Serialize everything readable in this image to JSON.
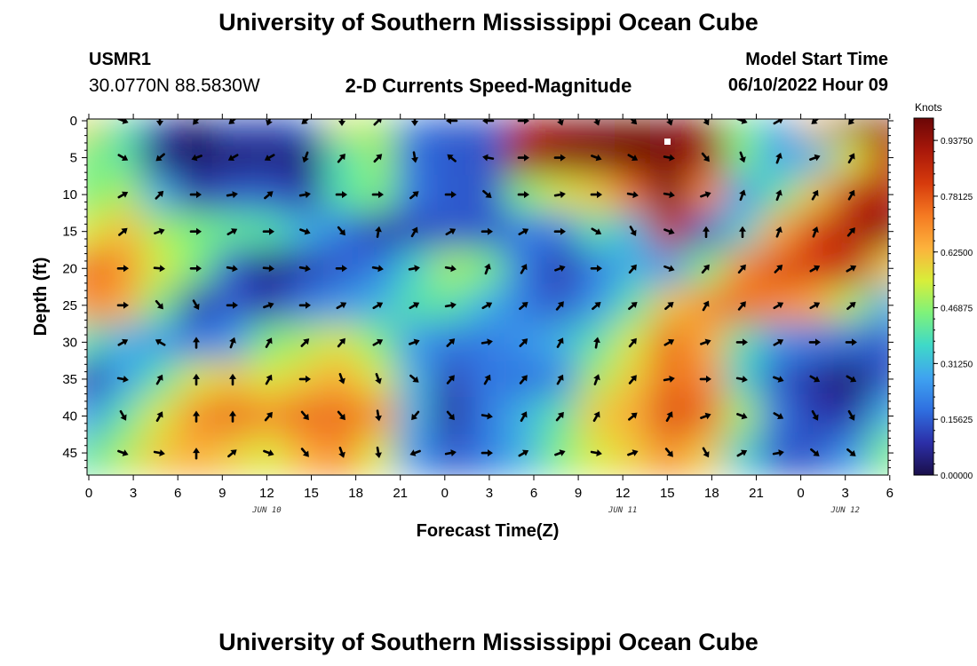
{
  "header": {
    "title": "University of Southern Mississippi Ocean Cube",
    "station": "USMR1",
    "coords": "30.0770N  88.5830W",
    "subtitle": "2-D Currents Speed-Magnitude",
    "model_start_label": "Model Start Time",
    "model_start_value": "06/10/2022 Hour 09"
  },
  "footer": {
    "title": "University of Southern Mississippi Ocean Cube"
  },
  "chart_data": {
    "type": "heatmap",
    "xlabel": "Forecast Time(Z)",
    "ylabel": "Depth (ft)",
    "x_ticks": [
      "0",
      "3",
      "6",
      "9",
      "12",
      "15",
      "18",
      "21",
      "0",
      "3",
      "6",
      "9",
      "12",
      "15",
      "18",
      "21",
      "0",
      "3",
      "6"
    ],
    "date_labels": [
      {
        "text": "JUN 10",
        "at_tick": 4
      },
      {
        "text": "JUN 11",
        "at_tick": 12
      },
      {
        "text": "JUN 12",
        "at_tick": 17
      }
    ],
    "y_ticks": [
      0,
      5,
      10,
      15,
      20,
      25,
      30,
      35,
      40,
      45
    ],
    "ylim": [
      0,
      48
    ],
    "colorbar": {
      "unit": "Knots",
      "labels": [
        "0.00000",
        "0.15625",
        "0.31250",
        "0.46875",
        "0.62500",
        "0.78125",
        "0.93750"
      ],
      "range": [
        0,
        1.0
      ],
      "colors": [
        "#1a0f4a",
        "#2c2fa8",
        "#2f6fe0",
        "#3fa3f0",
        "#3fd9c8",
        "#7ff27a",
        "#d8ee3a",
        "#fcb23c",
        "#f57a22",
        "#d63a0c",
        "#a9180a",
        "#6b0606"
      ]
    },
    "series": [
      {
        "depths": [
          0,
          5,
          10,
          15,
          20,
          25,
          30,
          35,
          40,
          45
        ],
        "speed_knots": [
          [
            0.58,
            0.4,
            0.12,
            0.02,
            0.15,
            0.12,
            0.18,
            0.55,
            0.5,
            0.2,
            0.15,
            0.15,
            0.92,
            0.95,
            0.98,
            0.99,
            0.98,
            0.95,
            0.45,
            0.28,
            0.62,
            0.98,
            0.97
          ],
          [
            0.45,
            0.4,
            0.06,
            0.02,
            0.04,
            0.05,
            0.04,
            0.38,
            0.48,
            0.18,
            0.15,
            0.15,
            0.9,
            0.95,
            0.97,
            0.99,
            0.98,
            0.9,
            0.45,
            0.28,
            0.3,
            0.55,
            0.85
          ],
          [
            0.45,
            0.5,
            0.3,
            0.1,
            0.15,
            0.15,
            0.1,
            0.4,
            0.45,
            0.2,
            0.15,
            0.15,
            0.45,
            0.55,
            0.6,
            0.75,
            0.98,
            0.7,
            0.25,
            0.4,
            0.6,
            0.85,
            0.9
          ],
          [
            0.55,
            0.62,
            0.5,
            0.45,
            0.42,
            0.4,
            0.3,
            0.2,
            0.1,
            0.12,
            0.15,
            0.15,
            0.2,
            0.2,
            0.4,
            0.3,
            0.85,
            0.15,
            0.35,
            0.65,
            0.82,
            0.9,
            0.95
          ],
          [
            0.75,
            0.7,
            0.55,
            0.45,
            0.15,
            0.05,
            0.1,
            0.15,
            0.2,
            0.35,
            0.5,
            0.45,
            0.2,
            0.1,
            0.2,
            0.3,
            0.25,
            0.45,
            0.7,
            0.8,
            0.82,
            0.85,
            0.6
          ],
          [
            0.7,
            0.65,
            0.45,
            0.1,
            0.15,
            0.1,
            0.2,
            0.25,
            0.3,
            0.4,
            0.4,
            0.3,
            0.2,
            0.15,
            0.25,
            0.4,
            0.6,
            0.7,
            0.75,
            0.7,
            0.65,
            0.5,
            0.3
          ],
          [
            0.4,
            0.3,
            0.25,
            0.2,
            0.25,
            0.45,
            0.5,
            0.55,
            0.45,
            0.25,
            0.2,
            0.2,
            0.25,
            0.3,
            0.4,
            0.55,
            0.75,
            0.65,
            0.4,
            0.25,
            0.2,
            0.18,
            0.15
          ],
          [
            0.1,
            0.25,
            0.4,
            0.55,
            0.6,
            0.55,
            0.6,
            0.65,
            0.55,
            0.3,
            0.12,
            0.2,
            0.18,
            0.22,
            0.5,
            0.6,
            0.75,
            0.7,
            0.35,
            0.15,
            0.08,
            0.02,
            0.15
          ],
          [
            0.25,
            0.4,
            0.55,
            0.7,
            0.75,
            0.7,
            0.75,
            0.75,
            0.7,
            0.3,
            0.08,
            0.2,
            0.3,
            0.4,
            0.6,
            0.65,
            0.8,
            0.75,
            0.5,
            0.2,
            0.1,
            0.1,
            0.3
          ],
          [
            0.4,
            0.5,
            0.6,
            0.65,
            0.6,
            0.55,
            0.65,
            0.7,
            0.55,
            0.25,
            0.15,
            0.2,
            0.3,
            0.45,
            0.55,
            0.6,
            0.7,
            0.6,
            0.35,
            0.15,
            0.15,
            0.25,
            0.45
          ]
        ],
        "direction_deg": [
          [
            20,
            110,
            180,
            220,
            230,
            200,
            230,
            180,
            45,
            180,
            270,
            270,
            90,
            160,
            160,
            135,
            160,
            150,
            110,
            60,
            230,
            220,
            240
          ],
          [
            80,
            120,
            230,
            250,
            240,
            240,
            200,
            40,
            45,
            170,
            310,
            280,
            90,
            90,
            110,
            120,
            100,
            140,
            160,
            20,
            70,
            30,
            30
          ],
          [
            60,
            60,
            45,
            90,
            80,
            50,
            80,
            90,
            90,
            50,
            90,
            130,
            90,
            80,
            90,
            100,
            100,
            70,
            20,
            20,
            30,
            30,
            30
          ],
          [
            20,
            50,
            70,
            90,
            60,
            90,
            110,
            140,
            10,
            30,
            60,
            90,
            60,
            90,
            120,
            150,
            110,
            0,
            0,
            20,
            20,
            40,
            30
          ],
          [
            80,
            90,
            95,
            90,
            100,
            95,
            100,
            90,
            100,
            80,
            100,
            20,
            30,
            70,
            90,
            40,
            110,
            40,
            40,
            45,
            60,
            60,
            70
          ],
          [
            90,
            90,
            140,
            150,
            90,
            70,
            90,
            60,
            60,
            60,
            80,
            60,
            50,
            40,
            50,
            50,
            50,
            30,
            40,
            60,
            60,
            50,
            50
          ],
          [
            70,
            60,
            300,
            0,
            20,
            30,
            45,
            40,
            60,
            70,
            45,
            80,
            45,
            30,
            10,
            40,
            60,
            70,
            90,
            60,
            90,
            90,
            90
          ],
          [
            130,
            100,
            30,
            0,
            0,
            30,
            90,
            160,
            160,
            130,
            40,
            30,
            40,
            30,
            20,
            40,
            80,
            90,
            100,
            110,
            120,
            120,
            120
          ],
          [
            80,
            150,
            30,
            0,
            0,
            40,
            140,
            140,
            170,
            220,
            140,
            100,
            30,
            40,
            30,
            50,
            30,
            70,
            110,
            120,
            150,
            150,
            150
          ],
          [
            110,
            110,
            100,
            0,
            50,
            110,
            140,
            160,
            170,
            250,
            80,
            90,
            60,
            70,
            100,
            70,
            140,
            150,
            60,
            80,
            130,
            130,
            130
          ]
        ]
      }
    ]
  }
}
